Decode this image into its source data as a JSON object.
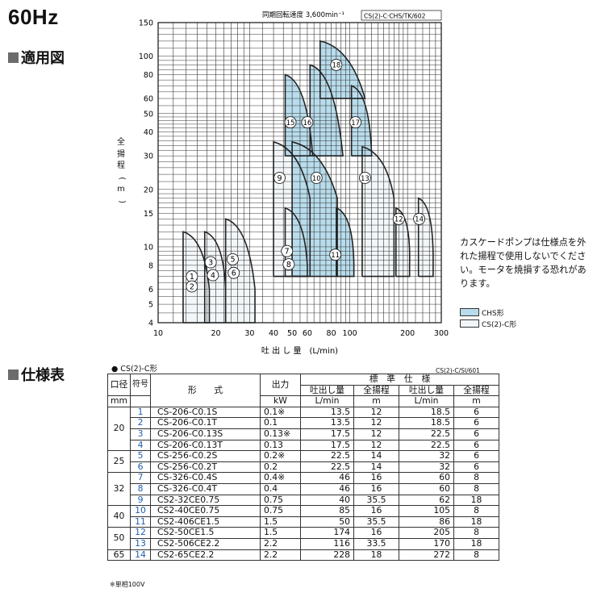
{
  "header": {
    "freq": "60Hz"
  },
  "section_chart": "適用図",
  "section_spec": "仕様表",
  "chart": {
    "sync_speed": "同期回転速度 3,600min⁻¹",
    "code": "CS(2)-C·CHS/TK/602",
    "ylabel_chars": [
      "全",
      "揚",
      "程",
      "(",
      "m",
      ")"
    ],
    "xlabel": "吐 出 し 量　(L/min)",
    "y_ticks": [
      "150",
      "100",
      "80",
      "60",
      "50",
      "40",
      "30",
      "20",
      "15",
      "10",
      "8",
      "6",
      "5",
      "4"
    ],
    "x_ticks": [
      "10",
      "20",
      "30",
      "40",
      "50",
      "60",
      "80",
      "100",
      "200",
      "300"
    ],
    "x_scale": "log",
    "y_scale": "log",
    "xlim": [
      10,
      300
    ],
    "ylim": [
      4,
      150
    ],
    "grid": true,
    "colors": {
      "chs": "#b8dcec",
      "cs2": "#f2f6f8",
      "line": "#222222",
      "grid": "#333333"
    },
    "curve_labels": [
      "1",
      "2",
      "3",
      "4",
      "5",
      "6",
      "7",
      "8",
      "9",
      "10",
      "11",
      "12",
      "13",
      "14",
      "15",
      "16",
      "17",
      "18"
    ]
  },
  "note": "カスケードポンプは仕様点を外れた揚程で使用しないでください。モータを焼損する恐れがあります。",
  "legend": [
    {
      "label": "CHS形",
      "color": "#b8dcec"
    },
    {
      "label": "CS(2)-C形",
      "color": "#f2f6f8"
    }
  ],
  "spec": {
    "title": "● CS(2)-C形",
    "code": "CS(2)-C/SI/601",
    "headers": {
      "bore": "口径",
      "no": "符号",
      "model": "形　　式",
      "output": "出力",
      "standard": "標　準　仕　様",
      "flow": "吐出し量",
      "head": "全揚程",
      "unit_bore": "mm",
      "unit_output": "kW",
      "unit_flow": "L/min",
      "unit_head": "m"
    },
    "rows": [
      {
        "bore": "20",
        "no": "1",
        "model": "CS-206-C0.1S",
        "kw": "0.1※",
        "q1": "13.5",
        "h1": "12",
        "q2": "18.5",
        "h2": "6"
      },
      {
        "bore": "",
        "no": "2",
        "model": "CS-206-C0.1T",
        "kw": "0.1",
        "q1": "13.5",
        "h1": "12",
        "q2": "18.5",
        "h2": "6"
      },
      {
        "bore": "",
        "no": "3",
        "model": "CS-206-C0.13S",
        "kw": "0.13※",
        "q1": "17.5",
        "h1": "12",
        "q2": "22.5",
        "h2": "6"
      },
      {
        "bore": "",
        "no": "4",
        "model": "CS-206-C0.13T",
        "kw": "0.13",
        "q1": "17.5",
        "h1": "12",
        "q2": "22.5",
        "h2": "6"
      },
      {
        "bore": "25",
        "no": "5",
        "model": "CS-256-C0.2S",
        "kw": "0.2※",
        "q1": "22.5",
        "h1": "14",
        "q2": "32",
        "h2": "6"
      },
      {
        "bore": "",
        "no": "6",
        "model": "CS-256-C0.2T",
        "kw": "0.2",
        "q1": "22.5",
        "h1": "14",
        "q2": "32",
        "h2": "6"
      },
      {
        "bore": "32",
        "no": "7",
        "model": "CS-326-C0.4S",
        "kw": "0.4※",
        "q1": "46",
        "h1": "16",
        "q2": "60",
        "h2": "8"
      },
      {
        "bore": "",
        "no": "8",
        "model": "CS-326-C0.4T",
        "kw": "0.4",
        "q1": "46",
        "h1": "16",
        "q2": "60",
        "h2": "8"
      },
      {
        "bore": "",
        "no": "9",
        "model": "CS2-32CE0.75",
        "kw": "0.75",
        "q1": "40",
        "h1": "35.5",
        "q2": "62",
        "h2": "18"
      },
      {
        "bore": "40",
        "no": "10",
        "model": "CS2-40CE0.75",
        "kw": "0.75",
        "q1": "85",
        "h1": "16",
        "q2": "105",
        "h2": "8"
      },
      {
        "bore": "",
        "no": "11",
        "model": "CS2-406CE1.5",
        "kw": "1.5",
        "q1": "50",
        "h1": "35.5",
        "q2": "86",
        "h2": "18"
      },
      {
        "bore": "50",
        "no": "12",
        "model": "CS2-50CE1.5",
        "kw": "1.5",
        "q1": "174",
        "h1": "16",
        "q2": "205",
        "h2": "8"
      },
      {
        "bore": "",
        "no": "13",
        "model": "CS2-506CE2.2",
        "kw": "2.2",
        "q1": "116",
        "h1": "33.5",
        "q2": "170",
        "h2": "18"
      },
      {
        "bore": "65",
        "no": "14",
        "model": "CS2-65CE2.2",
        "kw": "2.2",
        "q1": "228",
        "h1": "18",
        "q2": "272",
        "h2": "8"
      }
    ],
    "footnote": "※単相100V"
  }
}
